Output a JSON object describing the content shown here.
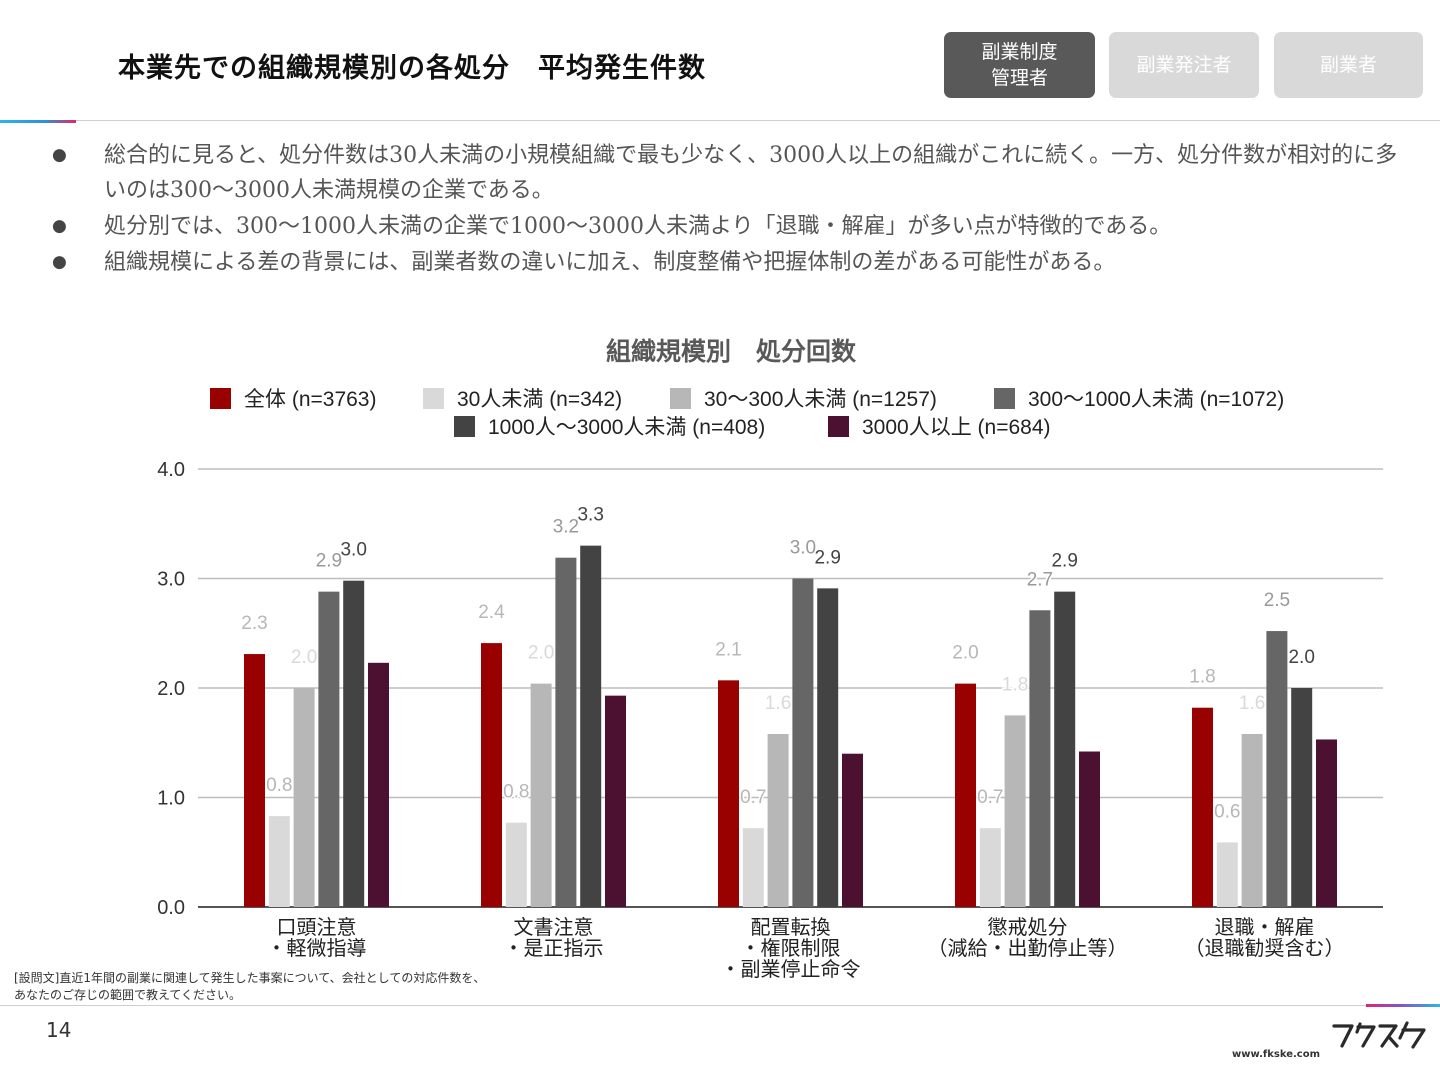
{
  "header": {
    "title": "本業先での組織規模別の各処分　平均発生件数",
    "tabs": [
      {
        "label": "副業制度\n管理者",
        "active": true
      },
      {
        "label": "副業発注者",
        "active": false
      },
      {
        "label": "副業者",
        "active": false
      }
    ]
  },
  "bullets": [
    "総合的に見ると、処分件数は30人未満の小規模組織で最も少なく、3000人以上の組織がこれに続く。一方、処分件数が相対的に多いのは300〜3000人未満規模の企業である。",
    "処分別では、300〜1000人未満の企業で1000〜3000人未満より「退職・解雇」が多い点が特徴的である。",
    "組織規模による差の背景には、副業者数の違いに加え、制度整備や把握体制の差がある可能性がある。"
  ],
  "chart_data": {
    "type": "bar",
    "title": "組織規模別　処分回数",
    "categories": [
      "口頭注意\n・軽微指導",
      "文書注意\n・是正指示",
      "配置転換\n・権限制限\n・副業停止命令",
      "懲戒処分\n（減給・出勤停止等）",
      "退職・解雇\n（退職勧奨含む）"
    ],
    "ylim": [
      0,
      4
    ],
    "yticks": [
      "0.0",
      "1.0",
      "2.0",
      "3.0",
      "4.0"
    ],
    "grid": true,
    "legend_position": "top",
    "series": [
      {
        "name": "全体 (n=3763)",
        "color": "#990000",
        "values": [
          2.31,
          2.41,
          2.07,
          2.04,
          1.82
        ],
        "labels": [
          "2.3",
          "2.4",
          "2.1",
          "2.0",
          "1.8"
        ],
        "label_color": "#b7b7b7"
      },
      {
        "name": "30人未満 (n=342)",
        "color": "#d9d9d9",
        "values": [
          0.83,
          0.77,
          0.72,
          0.72,
          0.59
        ],
        "labels": [
          "0.8",
          "0.8",
          "0.7",
          "0.7",
          "0.6"
        ],
        "label_color": "#b7b7b7"
      },
      {
        "name": "30〜300人未満 (n=1257)",
        "color": "#b7b7b7",
        "values": [
          2.0,
          2.04,
          1.58,
          1.75,
          1.58
        ],
        "labels": [
          "2.0",
          "2.0",
          "1.6",
          "1.8",
          "1.6"
        ],
        "label_color": "#d9d9d9"
      },
      {
        "name": "300〜1000人未満 (n=1072)",
        "color": "#666666",
        "values": [
          2.88,
          3.19,
          3.0,
          2.71,
          2.52
        ],
        "labels": [
          "2.9",
          "3.2",
          "3.0",
          "2.7",
          "2.5"
        ],
        "label_color": "#999999"
      },
      {
        "name": "1000人〜3000人未満 (n=408)",
        "color": "#434343",
        "values": [
          2.98,
          3.3,
          2.91,
          2.88,
          2.0
        ],
        "labels": [
          "3.0",
          "3.3",
          "2.9",
          "2.9",
          "2.0"
        ],
        "label_color": "#434343"
      },
      {
        "name": "3000人以上 (n=684)",
        "color": "#4c1130",
        "values": [
          2.23,
          1.93,
          1.4,
          1.42,
          1.53
        ],
        "labels": [
          "",
          "",
          "",
          "",
          ""
        ],
        "label_color": "#4c1130"
      }
    ]
  },
  "footnote": {
    "line1": "[設問文]直近1年間の副業に関連して発生した事案について、会社としての対応件数を、",
    "line2": "あなたのご存じの範囲で教えてください。"
  },
  "footer": {
    "page_number": "14",
    "url": "www.fkske.com",
    "logo_text": "フクスケ"
  }
}
